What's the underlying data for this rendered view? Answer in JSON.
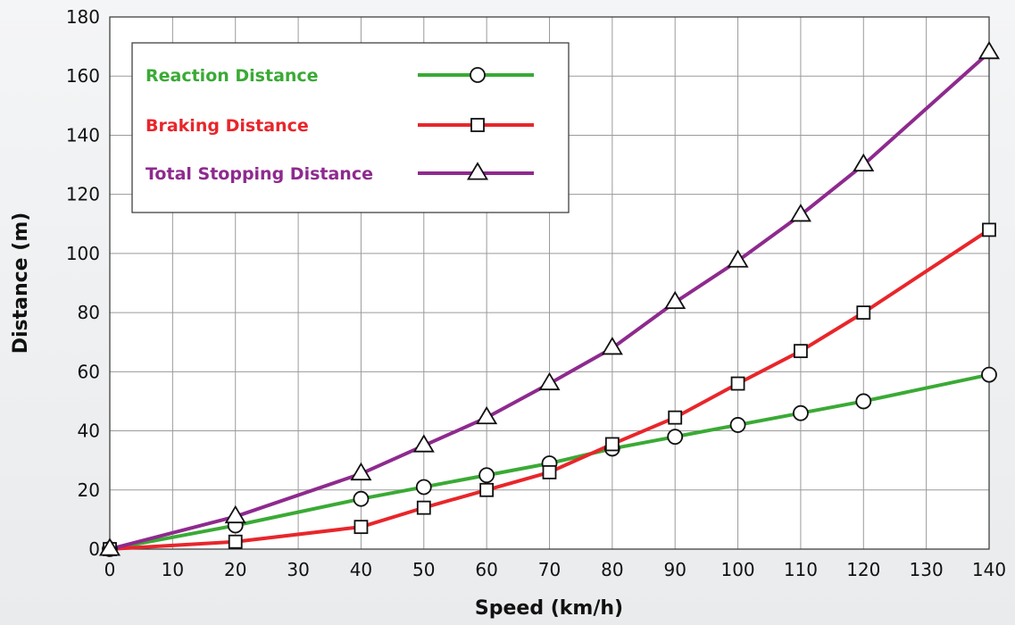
{
  "chart_data": {
    "type": "line",
    "xlabel": "Speed (km/h)",
    "ylabel": "Distance (m)",
    "xlim": [
      0,
      140
    ],
    "ylim": [
      0,
      180
    ],
    "x_ticks": [
      0,
      10,
      20,
      30,
      40,
      50,
      60,
      70,
      80,
      90,
      100,
      110,
      120,
      130,
      140
    ],
    "y_ticks": [
      0,
      20,
      40,
      60,
      80,
      100,
      120,
      140,
      160,
      180
    ],
    "grid": true,
    "legend_position": "top-left",
    "x": [
      0,
      20,
      40,
      50,
      60,
      70,
      80,
      90,
      100,
      110,
      120,
      140
    ],
    "series": [
      {
        "name": "Reaction Distance",
        "color": "#3aaa35",
        "marker": "circle",
        "values": [
          0,
          8,
          17,
          21,
          25,
          29,
          34,
          38,
          42,
          46,
          50,
          59
        ]
      },
      {
        "name": "Braking Distance",
        "color": "#e8262b",
        "marker": "square",
        "values": [
          0,
          2.5,
          7.5,
          14,
          20,
          26,
          35.5,
          44.5,
          56,
          67,
          80,
          108
        ]
      },
      {
        "name": "Total Stopping Distance",
        "color": "#8e2a8e",
        "marker": "triangle",
        "values": [
          0,
          11,
          25.5,
          35,
          44.5,
          56,
          68,
          83.5,
          97.5,
          113,
          130,
          168
        ]
      }
    ]
  }
}
